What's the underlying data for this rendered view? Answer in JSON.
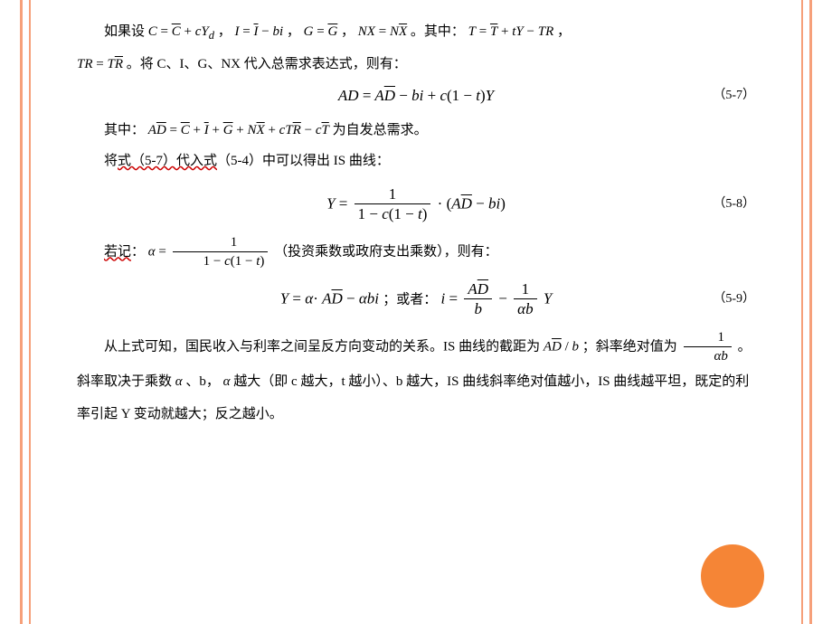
{
  "palette": {
    "accent_border": "#f6a07a",
    "circle_fill": "#f58536",
    "wavy_underline": "#cc0000",
    "text": "#000000",
    "bg": "#ffffff"
  },
  "typography": {
    "body_family": "SimSun / 宋体",
    "math_family": "Times New Roman (italic)",
    "body_size_pt": 12,
    "math_size_pt": 13,
    "line_height": 2.3
  },
  "eq_labels": {
    "eq57": "（5-7）",
    "eq58": "（5-8）",
    "eq59": "（5-9）"
  },
  "equations": {
    "ad": "AD = AD̄ − bi + c(1 − t)Y",
    "y": "Y = 1/(1 − c(1 − t)) · (AD̄ − bi)",
    "alpha": "α = 1/(1 − c(1 − t))",
    "y_alpha": "Y = α·AD̄ − αbi ；或者：i = AD̄/b − (1/αb)Y",
    "ad_bar": "AD̄ = C̄ + Ī + Ḡ + NX̄ + cTR̄ − cT̄"
  },
  "text": {
    "p1_a": "如果设 ",
    "p1_b": " 。其中：",
    "p1_c": "，",
    "p2_a": " 。将 C、I、G、NX 代入总需求表达式，则有：",
    "p3_a": "其中：",
    "p3_b": " 为自发总需求。",
    "p4": "将式（5-7）代入式（5-4）中可以得出 IS 曲线：",
    "p5_a": "若记：",
    "p5_b": "（投资乘数或政府支出乘数），则有：",
    "or": "；或者：",
    "p6_a": "从上式可知，国民收入与利率之间呈反方向变动的关系。IS 曲线的截距为 ",
    "p6_b": " ；斜率绝对值为 ",
    "p6_c": " 。斜率取决于乘数 ",
    "p6_d": "、b，",
    "p6_e": " 越大（即 c 越大，t 越小）、b 越大，IS 曲线斜率绝对值越小，IS 曲线越平坦，既定的利率引起 Y 变动就越大；反之越小。",
    "wavy1": "式（5-7）代入式",
    "wavy2": "若记"
  },
  "math_frags": {
    "C_eq": "C = C̄ + cY_d",
    "I_eq": "I = Ī − bi",
    "G_eq": "G = Ḡ",
    "NX_eq": "NX = NX̄",
    "T_eq": "T = T̄ + tY − TR",
    "TR_eq": "TR = TR̄",
    "ADbar_over_b": "AD̄ / b",
    "one_over_ab": "1/(αb)",
    "alpha_sym": "α"
  }
}
